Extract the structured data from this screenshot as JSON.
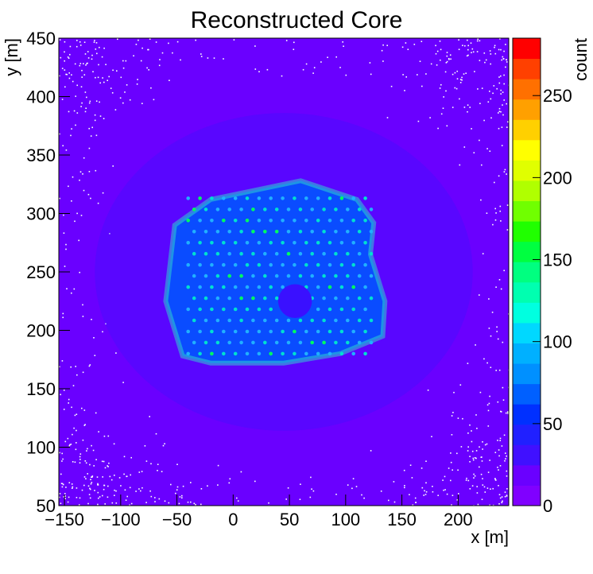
{
  "chart_data": {
    "type": "heatmap",
    "title": "Reconstructed Core",
    "xlabel": "x [m]",
    "ylabel": "y [m]",
    "zlabel": "count",
    "xlim": [
      -155,
      245
    ],
    "ylim": [
      50,
      450
    ],
    "zlim": [
      0,
      285
    ],
    "x_ticks": [
      -150,
      -100,
      -50,
      0,
      50,
      100,
      150,
      200
    ],
    "x_tick_labels": [
      "−150",
      "−100",
      "−50",
      "0",
      "50",
      "100",
      "150",
      "200"
    ],
    "y_ticks": [
      50,
      100,
      150,
      200,
      250,
      300,
      350,
      400,
      450
    ],
    "y_tick_labels": [
      "50",
      "100",
      "150",
      "200",
      "250",
      "300",
      "350",
      "400",
      "450"
    ],
    "z_ticks": [
      0,
      50,
      100,
      150,
      200,
      250
    ],
    "z_tick_labels": [
      "0",
      "50",
      "100",
      "150",
      "200",
      "250"
    ],
    "palette": [
      "#8000ff",
      "#6a00ff",
      "#4010ff",
      "#2020ff",
      "#0030ff",
      "#0060ff",
      "#0090ff",
      "#00b0ff",
      "#00d8ff",
      "#00ffe0",
      "#00ffb0",
      "#00ff80",
      "#00ff40",
      "#20ff00",
      "#70ff00",
      "#b0ff00",
      "#e0ff00",
      "#ffff00",
      "#ffd000",
      "#ffa000",
      "#ff7000",
      "#ff4000",
      "#ff0000"
    ],
    "background_level_color": "#6a00ff",
    "array_outline": [
      [
        -52,
        290
      ],
      [
        -20,
        312
      ],
      [
        60,
        328
      ],
      [
        110,
        312
      ],
      [
        125,
        292
      ],
      [
        122,
        265
      ],
      [
        135,
        225
      ],
      [
        133,
        195
      ],
      [
        95,
        180
      ],
      [
        45,
        172
      ],
      [
        -20,
        172
      ],
      [
        -45,
        178
      ],
      [
        -60,
        225
      ]
    ],
    "array_grid": {
      "x_start": -40,
      "x_end": 125,
      "y_start": 180,
      "y_end": 315,
      "dx": 10.5,
      "dy": 9.5
    },
    "array_hole": {
      "center": [
        55,
        225
      ],
      "radius": 15
    },
    "grid": false
  }
}
